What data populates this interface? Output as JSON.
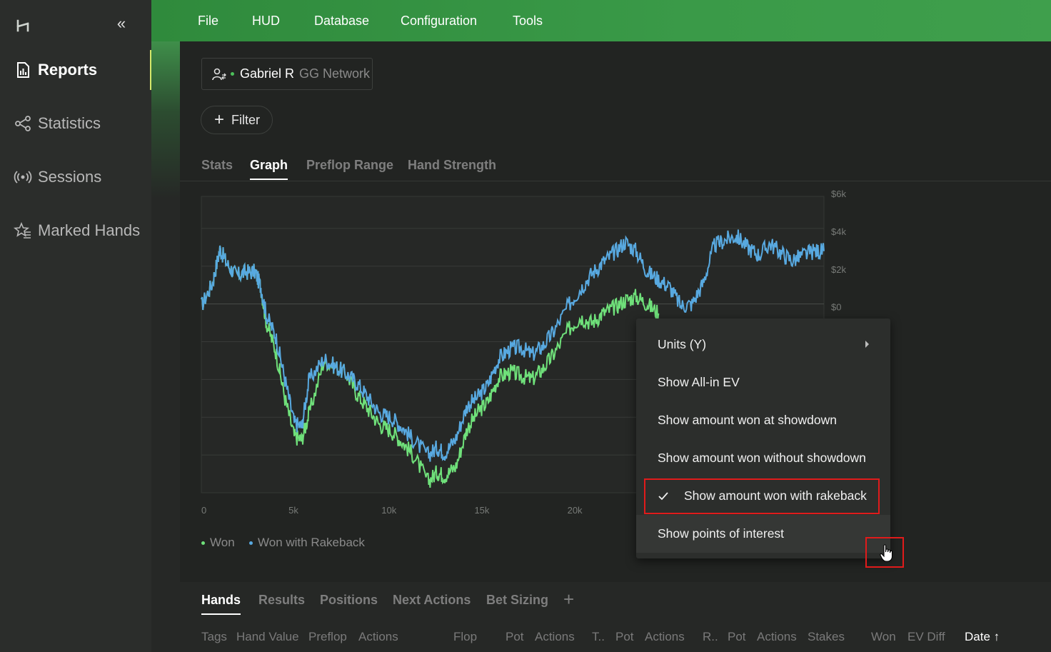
{
  "sidebar": {
    "collapse_glyph": "«",
    "items": [
      {
        "label": "Reports",
        "icon": "report-icon"
      },
      {
        "label": "Statistics",
        "icon": "statistics-icon"
      },
      {
        "label": "Sessions",
        "icon": "sessions-icon"
      },
      {
        "label": "Marked Hands",
        "icon": "marked-hands-icon"
      }
    ]
  },
  "menu": [
    "File",
    "HUD",
    "Database",
    "Configuration",
    "Tools"
  ],
  "player": {
    "name": "Gabriel R",
    "network": "GG Network"
  },
  "filter_label": "Filter",
  "tabs": [
    "Stats",
    "Graph",
    "Preflop Range",
    "Hand Strength"
  ],
  "chart_data": {
    "type": "line",
    "x_ticks": [
      "0",
      "5k",
      "10k",
      "15k",
      "20k"
    ],
    "y_ticks": [
      "$6k",
      "$4k",
      "$2k",
      "$0"
    ],
    "xlim": [
      0,
      33500
    ],
    "ylim": [
      -10000,
      5700
    ],
    "series": [
      {
        "name": "Won",
        "color": "#6fe07a",
        "points": [
          [
            0,
            -100
          ],
          [
            600,
            1100
          ],
          [
            1000,
            2900
          ],
          [
            1400,
            2100
          ],
          [
            1900,
            1500
          ],
          [
            2400,
            1700
          ],
          [
            2900,
            1700
          ],
          [
            3200,
            900
          ],
          [
            3500,
            -1000
          ],
          [
            4000,
            -2500
          ],
          [
            4500,
            -5000
          ],
          [
            5000,
            -7000
          ],
          [
            5400,
            -7200
          ],
          [
            5800,
            -5800
          ],
          [
            6600,
            -3000
          ],
          [
            7200,
            -3300
          ],
          [
            7800,
            -3700
          ],
          [
            8400,
            -4800
          ],
          [
            9000,
            -5600
          ],
          [
            9600,
            -6400
          ],
          [
            10200,
            -6700
          ],
          [
            10800,
            -7300
          ],
          [
            11400,
            -8000
          ],
          [
            12200,
            -9400
          ],
          [
            12700,
            -8900
          ],
          [
            13100,
            -9100
          ],
          [
            13700,
            -8600
          ],
          [
            14300,
            -6600
          ],
          [
            14900,
            -5700
          ],
          [
            15400,
            -5200
          ],
          [
            16000,
            -3900
          ],
          [
            16600,
            -3600
          ],
          [
            17200,
            -3800
          ],
          [
            17800,
            -4000
          ],
          [
            18400,
            -3400
          ],
          [
            19000,
            -2600
          ],
          [
            19800,
            -1300
          ],
          [
            20400,
            -700
          ],
          [
            21000,
            -1000
          ],
          [
            21600,
            -500
          ],
          [
            22200,
            -200
          ],
          [
            22800,
            200
          ],
          [
            23400,
            400
          ],
          [
            24000,
            0
          ],
          [
            24600,
            -500
          ]
        ]
      },
      {
        "name": "Won with Rakeback",
        "color": "#58a9e0",
        "points": [
          [
            0,
            -100
          ],
          [
            600,
            1100
          ],
          [
            1000,
            2900
          ],
          [
            1400,
            2100
          ],
          [
            1900,
            1500
          ],
          [
            2400,
            1700
          ],
          [
            2900,
            1700
          ],
          [
            3200,
            900
          ],
          [
            3500,
            -600
          ],
          [
            4000,
            -1700
          ],
          [
            4500,
            -4000
          ],
          [
            5000,
            -6300
          ],
          [
            5400,
            -6500
          ],
          [
            5800,
            -4000
          ],
          [
            6600,
            -2900
          ],
          [
            7200,
            -3300
          ],
          [
            7800,
            -3700
          ],
          [
            8400,
            -4200
          ],
          [
            9000,
            -5000
          ],
          [
            9600,
            -5800
          ],
          [
            10200,
            -6000
          ],
          [
            10800,
            -6500
          ],
          [
            11400,
            -7200
          ],
          [
            12200,
            -8000
          ],
          [
            12700,
            -7600
          ],
          [
            13100,
            -7900
          ],
          [
            13700,
            -7100
          ],
          [
            14300,
            -5400
          ],
          [
            14900,
            -4900
          ],
          [
            15400,
            -4300
          ],
          [
            16000,
            -2900
          ],
          [
            16600,
            -2400
          ],
          [
            17200,
            -2300
          ],
          [
            17800,
            -2700
          ],
          [
            18400,
            -2200
          ],
          [
            19000,
            -1400
          ],
          [
            19800,
            0
          ],
          [
            20400,
            800
          ],
          [
            21000,
            1600
          ],
          [
            21600,
            2200
          ],
          [
            22200,
            2700
          ],
          [
            22800,
            3300
          ],
          [
            23400,
            2800
          ],
          [
            24000,
            1700
          ],
          [
            24600,
            1300
          ],
          [
            25200,
            900
          ],
          [
            25800,
            -100
          ],
          [
            26400,
            0
          ],
          [
            27000,
            1100
          ],
          [
            27600,
            3100
          ],
          [
            28200,
            3400
          ],
          [
            28800,
            3600
          ],
          [
            29400,
            3000
          ],
          [
            30000,
            2600
          ],
          [
            30600,
            3200
          ],
          [
            31200,
            2700
          ],
          [
            31800,
            2300
          ],
          [
            32400,
            2600
          ],
          [
            33000,
            2800
          ],
          [
            33500,
            2800
          ]
        ]
      }
    ]
  },
  "context_menu": {
    "items": [
      "Units (Y)",
      "Show All-in EV",
      "Show amount won at showdown",
      "Show amount won without showdown",
      "Show amount won with rakeback",
      "Show points of interest"
    ],
    "checked_item": "Show amount won with rakeback",
    "hovered_item": "Show points of interest"
  },
  "bottom_tabs": [
    "Hands",
    "Results",
    "Positions",
    "Next Actions",
    "Bet Sizing"
  ],
  "add_tab_glyph": "+",
  "columns": [
    "Tags",
    "Hand Value",
    "Preflop",
    "Actions",
    "Flop",
    "Pot",
    "Actions",
    "T..",
    "Pot",
    "Actions",
    "R..",
    "Pot",
    "Actions",
    "Stakes",
    "Won",
    "EV Diff",
    "Date ↑"
  ]
}
